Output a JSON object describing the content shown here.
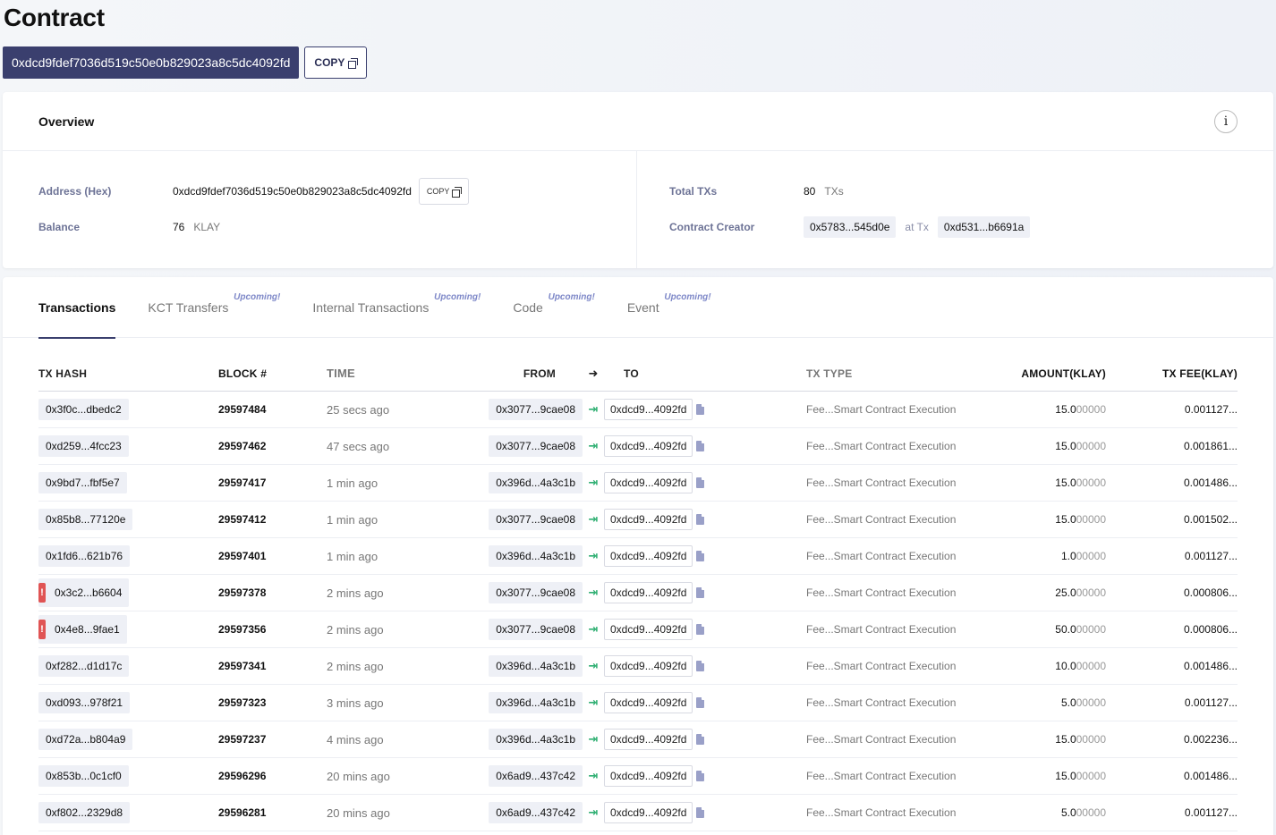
{
  "page": {
    "title": "Contract",
    "address": "0xdcd9fdef7036d519c50e0b829023a8c5dc4092fd",
    "copy_label": "COPY"
  },
  "overview": {
    "title": "Overview",
    "info_glyph": "i",
    "address_label": "Address (Hex)",
    "address_value": "0xdcd9fdef7036d519c50e0b829023a8c5dc4092fd",
    "copy_label": "COPY",
    "balance_label": "Balance",
    "balance_value": "76",
    "balance_unit": "KLAY",
    "total_txs_label": "Total TXs",
    "total_txs_value": "80",
    "total_txs_unit": "TXs",
    "creator_label": "Contract Creator",
    "creator_address": "0x5783...545d0e",
    "at_tx_label": "at Tx",
    "creator_tx": "0xd531...b6691a"
  },
  "tabs": [
    {
      "label": "Transactions",
      "upcoming": ""
    },
    {
      "label": "KCT Transfers",
      "upcoming": "Upcoming!"
    },
    {
      "label": "Internal Transactions",
      "upcoming": "Upcoming!"
    },
    {
      "label": "Code",
      "upcoming": "Upcoming!"
    },
    {
      "label": "Event",
      "upcoming": "Upcoming!"
    }
  ],
  "table": {
    "headers": {
      "hash": "TX HASH",
      "block": "BLOCK #",
      "time": "TIME",
      "from": "FROM",
      "to": "TO",
      "type": "TX TYPE",
      "amount": "AMOUNT(KLAY)",
      "fee": "TX FEE(KLAY)"
    },
    "rows": [
      {
        "hash": "0x3f0c...dbedc2",
        "error": false,
        "block": "29597484",
        "time": "25 secs ago",
        "from": "0x3077...9cae08",
        "to": "0xdcd9...4092fd",
        "type": "Fee...Smart Contract Execution",
        "amount_main": "15.0",
        "amount_dim": "00000",
        "fee": "0.001127..."
      },
      {
        "hash": "0xd259...4fcc23",
        "error": false,
        "block": "29597462",
        "time": "47 secs ago",
        "from": "0x3077...9cae08",
        "to": "0xdcd9...4092fd",
        "type": "Fee...Smart Contract Execution",
        "amount_main": "15.0",
        "amount_dim": "00000",
        "fee": "0.001861..."
      },
      {
        "hash": "0x9bd7...fbf5e7",
        "error": false,
        "block": "29597417",
        "time": "1 min ago",
        "from": "0x396d...4a3c1b",
        "to": "0xdcd9...4092fd",
        "type": "Fee...Smart Contract Execution",
        "amount_main": "15.0",
        "amount_dim": "00000",
        "fee": "0.001486..."
      },
      {
        "hash": "0x85b8...77120e",
        "error": false,
        "block": "29597412",
        "time": "1 min ago",
        "from": "0x3077...9cae08",
        "to": "0xdcd9...4092fd",
        "type": "Fee...Smart Contract Execution",
        "amount_main": "15.0",
        "amount_dim": "00000",
        "fee": "0.001502..."
      },
      {
        "hash": "0x1fd6...621b76",
        "error": false,
        "block": "29597401",
        "time": "1 min ago",
        "from": "0x396d...4a3c1b",
        "to": "0xdcd9...4092fd",
        "type": "Fee...Smart Contract Execution",
        "amount_main": "1.0",
        "amount_dim": "00000",
        "fee": "0.001127..."
      },
      {
        "hash": "0x3c2...b6604",
        "error": true,
        "block": "29597378",
        "time": "2 mins ago",
        "from": "0x3077...9cae08",
        "to": "0xdcd9...4092fd",
        "type": "Fee...Smart Contract Execution",
        "amount_main": "25.0",
        "amount_dim": "00000",
        "fee": "0.000806..."
      },
      {
        "hash": "0x4e8...9fae1",
        "error": true,
        "block": "29597356",
        "time": "2 mins ago",
        "from": "0x3077...9cae08",
        "to": "0xdcd9...4092fd",
        "type": "Fee...Smart Contract Execution",
        "amount_main": "50.0",
        "amount_dim": "00000",
        "fee": "0.000806..."
      },
      {
        "hash": "0xf282...d1d17c",
        "error": false,
        "block": "29597341",
        "time": "2 mins ago",
        "from": "0x396d...4a3c1b",
        "to": "0xdcd9...4092fd",
        "type": "Fee...Smart Contract Execution",
        "amount_main": "10.0",
        "amount_dim": "00000",
        "fee": "0.001486..."
      },
      {
        "hash": "0xd093...978f21",
        "error": false,
        "block": "29597323",
        "time": "3 mins ago",
        "from": "0x396d...4a3c1b",
        "to": "0xdcd9...4092fd",
        "type": "Fee...Smart Contract Execution",
        "amount_main": "5.0",
        "amount_dim": "00000",
        "fee": "0.001127..."
      },
      {
        "hash": "0xd72a...b804a9",
        "error": false,
        "block": "29597237",
        "time": "4 mins ago",
        "from": "0x396d...4a3c1b",
        "to": "0xdcd9...4092fd",
        "type": "Fee...Smart Contract Execution",
        "amount_main": "15.0",
        "amount_dim": "00000",
        "fee": "0.002236..."
      },
      {
        "hash": "0x853b...0c1cf0",
        "error": false,
        "block": "29596296",
        "time": "20 mins ago",
        "from": "0x6ad9...437c42",
        "to": "0xdcd9...4092fd",
        "type": "Fee...Smart Contract Execution",
        "amount_main": "15.0",
        "amount_dim": "00000",
        "fee": "0.001486..."
      },
      {
        "hash": "0xf802...2329d8",
        "error": false,
        "block": "29596281",
        "time": "20 mins ago",
        "from": "0x6ad9...437c42",
        "to": "0xdcd9...4092fd",
        "type": "Fee...Smart Contract Execution",
        "amount_main": "5.0",
        "amount_dim": "00000",
        "fee": "0.001127..."
      }
    ]
  }
}
